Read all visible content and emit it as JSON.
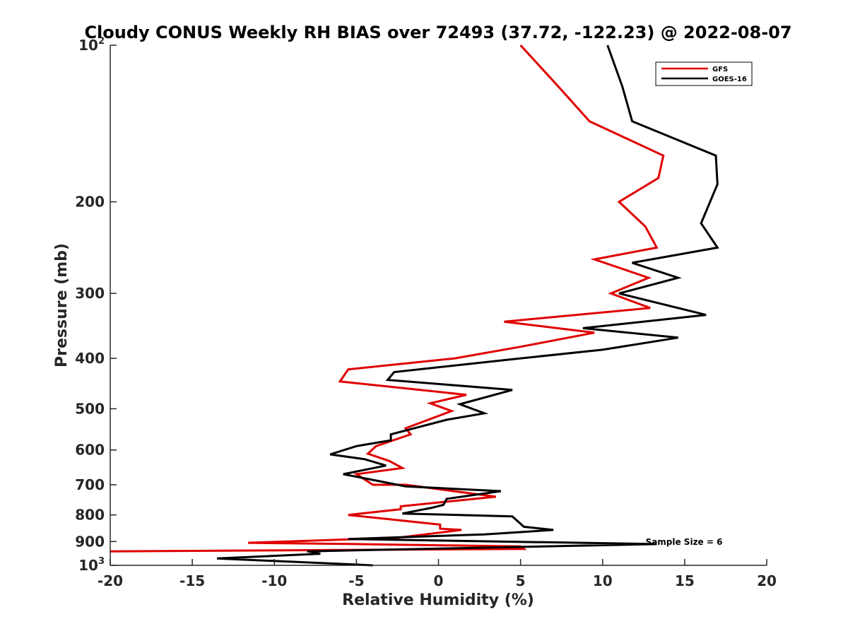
{
  "chart_data": {
    "type": "line",
    "title": "Cloudy CONUS Weekly RH BIAS over 72493 (37.72, -122.23) @ 2022-08-07",
    "xlabel": "Relative Humidity (%)",
    "ylabel": "Pressure (mb)",
    "xlim": [
      -20,
      20
    ],
    "ylim": [
      100,
      1000
    ],
    "y_scale": "log",
    "y_reversed": true,
    "x_ticks": [
      "-20",
      "-15",
      "-10",
      "-5",
      "0",
      "5",
      "10",
      "15",
      "20"
    ],
    "y_ticks": [
      {
        "value": 100,
        "base": "10",
        "exp": "2"
      },
      {
        "value": 200,
        "label": "200"
      },
      {
        "value": 300,
        "label": "300"
      },
      {
        "value": 400,
        "label": "400"
      },
      {
        "value": 500,
        "label": "500"
      },
      {
        "value": 600,
        "label": "600"
      },
      {
        "value": 700,
        "label": "700"
      },
      {
        "value": 800,
        "label": "800"
      },
      {
        "value": 900,
        "label": "900"
      },
      {
        "value": 1000,
        "base": "10",
        "exp": "3"
      }
    ],
    "grid": false,
    "legend_position": "top-right",
    "annotation": "Sample Size = 6",
    "series": [
      {
        "name": "GFS",
        "color": "#e00000",
        "points": [
          [
            5.0,
            100
          ],
          [
            7.3,
            120
          ],
          [
            9.2,
            140
          ],
          [
            13.7,
            163
          ],
          [
            13.4,
            180
          ],
          [
            11.0,
            200
          ],
          [
            12.6,
            223
          ],
          [
            13.3,
            245
          ],
          [
            9.5,
            258
          ],
          [
            12.8,
            280
          ],
          [
            10.5,
            300
          ],
          [
            12.9,
            320
          ],
          [
            4.0,
            340
          ],
          [
            9.5,
            357
          ],
          [
            5.0,
            380
          ],
          [
            1.0,
            400
          ],
          [
            -5.5,
            420
          ],
          [
            -6.0,
            443
          ],
          [
            1.7,
            470
          ],
          [
            -0.5,
            488
          ],
          [
            0.8,
            505
          ],
          [
            -2.0,
            545
          ],
          [
            -1.7,
            560
          ],
          [
            -3.8,
            590
          ],
          [
            -4.3,
            610
          ],
          [
            -3.0,
            630
          ],
          [
            -2.2,
            650
          ],
          [
            -5.0,
            668
          ],
          [
            -4.0,
            700
          ],
          [
            -2.0,
            700
          ],
          [
            3.5,
            738
          ],
          [
            -2.3,
            770
          ],
          [
            -2.3,
            780
          ],
          [
            -5.5,
            800
          ],
          [
            0.1,
            835
          ],
          [
            0.1,
            850
          ],
          [
            1.4,
            855
          ],
          [
            -2.5,
            885
          ],
          [
            -11.6,
            905
          ],
          [
            -5.0,
            910
          ],
          [
            5.0,
            920
          ],
          [
            5.2,
            930
          ],
          [
            -20.0,
            940
          ]
        ]
      },
      {
        "name": "GOES-16",
        "color": "#000000",
        "points": [
          [
            10.3,
            100
          ],
          [
            11.2,
            120
          ],
          [
            11.8,
            140
          ],
          [
            16.9,
            163
          ],
          [
            17.0,
            185
          ],
          [
            16.0,
            220
          ],
          [
            17.0,
            245
          ],
          [
            11.8,
            262
          ],
          [
            14.6,
            280
          ],
          [
            11.0,
            300
          ],
          [
            16.3,
            330
          ],
          [
            8.8,
            350
          ],
          [
            14.6,
            365
          ],
          [
            10.0,
            385
          ],
          [
            5.0,
            400
          ],
          [
            -2.7,
            425
          ],
          [
            -3.1,
            440
          ],
          [
            4.5,
            460
          ],
          [
            1.3,
            490
          ],
          [
            2.8,
            510
          ],
          [
            0.5,
            525
          ],
          [
            -2.9,
            560
          ],
          [
            -2.9,
            575
          ],
          [
            -5.0,
            590
          ],
          [
            -6.6,
            612
          ],
          [
            -4.5,
            625
          ],
          [
            -3.2,
            643
          ],
          [
            -5.8,
            668
          ],
          [
            -3.5,
            690
          ],
          [
            -2.0,
            705
          ],
          [
            3.8,
            720
          ],
          [
            0.5,
            745
          ],
          [
            0.3,
            765
          ],
          [
            -0.4,
            775
          ],
          [
            -2.2,
            795
          ],
          [
            4.5,
            805
          ],
          [
            5.2,
            843
          ],
          [
            7.0,
            855
          ],
          [
            2.8,
            872
          ],
          [
            -5.5,
            890
          ],
          [
            13.3,
            910
          ],
          [
            -8.0,
            940
          ],
          [
            -7.2,
            950
          ],
          [
            -13.5,
            970
          ],
          [
            -4.0,
            1000
          ]
        ]
      }
    ]
  }
}
